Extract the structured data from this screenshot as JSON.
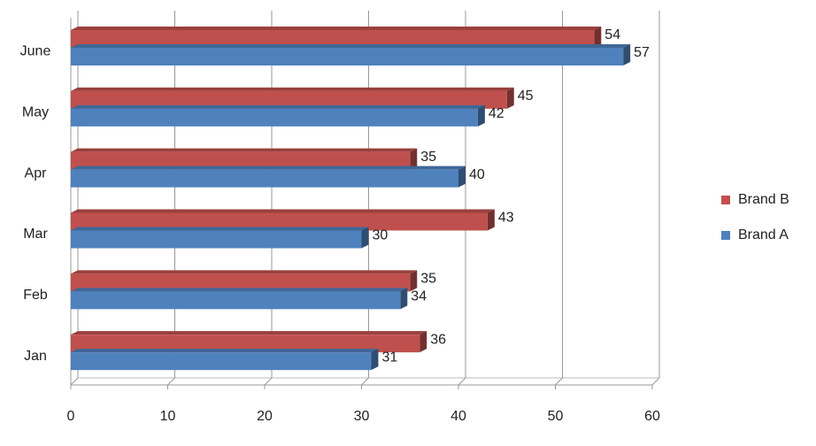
{
  "chart_data": {
    "type": "bar",
    "orientation": "horizontal",
    "categories": [
      "Jan",
      "Feb",
      "Mar",
      "Apr",
      "May",
      "June"
    ],
    "series": [
      {
        "name": "Brand A",
        "color": "#4f81bd",
        "values": [
          31,
          34,
          30,
          40,
          42,
          57
        ]
      },
      {
        "name": "Brand B",
        "color": "#c0504d",
        "values": [
          36,
          35,
          43,
          35,
          45,
          54
        ]
      }
    ],
    "xlim": [
      0,
      60
    ],
    "xticks": [
      0,
      10,
      20,
      30,
      40,
      50,
      60
    ],
    "grid": true,
    "legend": "right"
  }
}
